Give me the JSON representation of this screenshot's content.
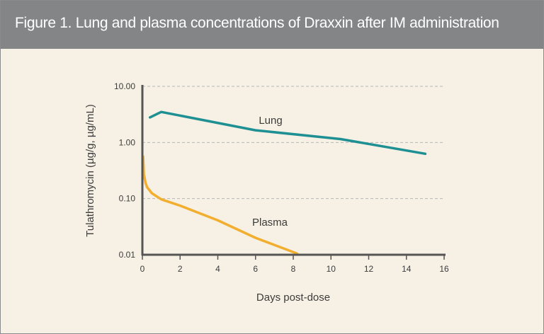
{
  "figure": {
    "title": "Figure 1. Lung and plasma concentrations of Draxxin after IM administration"
  },
  "colors": {
    "header_bg": "#848587",
    "panel_bg": "#f6f1e4",
    "lung": "#1e9093",
    "plasma": "#f2ae2e",
    "axis": "#555555",
    "grid": "#b7b7b7"
  },
  "chart_data": {
    "type": "line",
    "title": "Figure 1. Lung and plasma concentrations of Draxxin after IM administration",
    "xlabel": "Days post-dose",
    "ylabel": "Tulathromycin (µg/g, µg/mL)",
    "xlim": [
      0,
      16
    ],
    "ylim": [
      0.01,
      10
    ],
    "yscale": "log",
    "grid": "horizontal dashed",
    "x_ticks": [
      "0",
      "2",
      "4",
      "6",
      "8",
      "10",
      "12",
      "14",
      "16"
    ],
    "y_ticks": [
      "10.00",
      "1.00",
      "0.10",
      "0.01"
    ],
    "series": [
      {
        "name": "Lung",
        "color": "#1e9093",
        "x": [
          0.4,
          1.0,
          6.0,
          10.5,
          15.0
        ],
        "y": [
          2.8,
          3.5,
          1.65,
          1.15,
          0.63
        ]
      },
      {
        "name": "Plasma",
        "color": "#f2ae2e",
        "x": [
          0.04,
          0.08,
          0.17,
          0.25,
          0.5,
          1.0,
          2.0,
          4.0,
          6.0,
          8.2
        ],
        "y": [
          0.56,
          0.27,
          0.19,
          0.16,
          0.125,
          0.097,
          0.075,
          0.041,
          0.02,
          0.0105
        ]
      }
    ]
  }
}
